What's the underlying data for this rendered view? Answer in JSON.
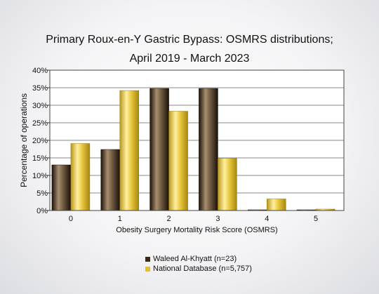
{
  "chart_data": {
    "type": "bar",
    "title_lines": [
      "Primary Roux-en-Y Gastric Bypass: OSMRS distributions;",
      "April 2019 - March 2023"
    ],
    "xlabel": "Obesity Surgery Mortality Risk Score (OSMRS)",
    "ylabel": "Percentage of operations",
    "categories": [
      "0",
      "1",
      "2",
      "3",
      "4",
      "5"
    ],
    "ylim": [
      0,
      40
    ],
    "yticks": [
      "0%",
      "5%",
      "10%",
      "15%",
      "20%",
      "25%",
      "30%",
      "35%",
      "40%"
    ],
    "grid": true,
    "legend_position": "bottom",
    "series": [
      {
        "name": "Waleed Al-Khyatt (n=23)",
        "values": [
          13.0,
          17.4,
          34.8,
          34.8,
          0.2,
          0.2
        ],
        "color": "#3a2a1a"
      },
      {
        "name": "National Database (n=5,757)",
        "values": [
          19.1,
          34.2,
          28.3,
          14.9,
          3.3,
          0.4
        ],
        "color": "#e0bf33"
      }
    ]
  }
}
